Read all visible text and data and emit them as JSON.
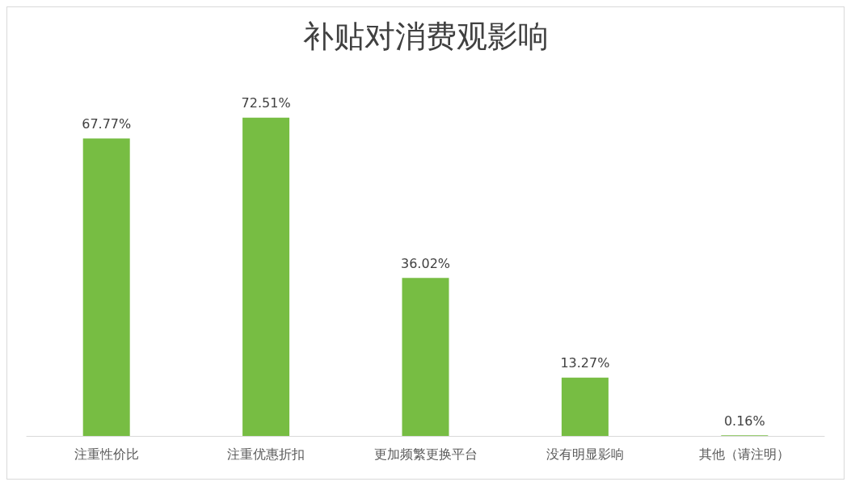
{
  "chart_data": {
    "type": "bar",
    "title": "补贴对消费观影响",
    "categories": [
      "注重性价比",
      "注重优惠折扣",
      "更加频繁更换平台",
      "没有明显影响",
      "其他（请注明）"
    ],
    "values": [
      67.77,
      72.51,
      36.02,
      13.27,
      0.16
    ],
    "value_labels": [
      "67.77%",
      "72.51%",
      "36.02%",
      "13.27%",
      "0.16%"
    ],
    "color": "#77bd43"
  }
}
